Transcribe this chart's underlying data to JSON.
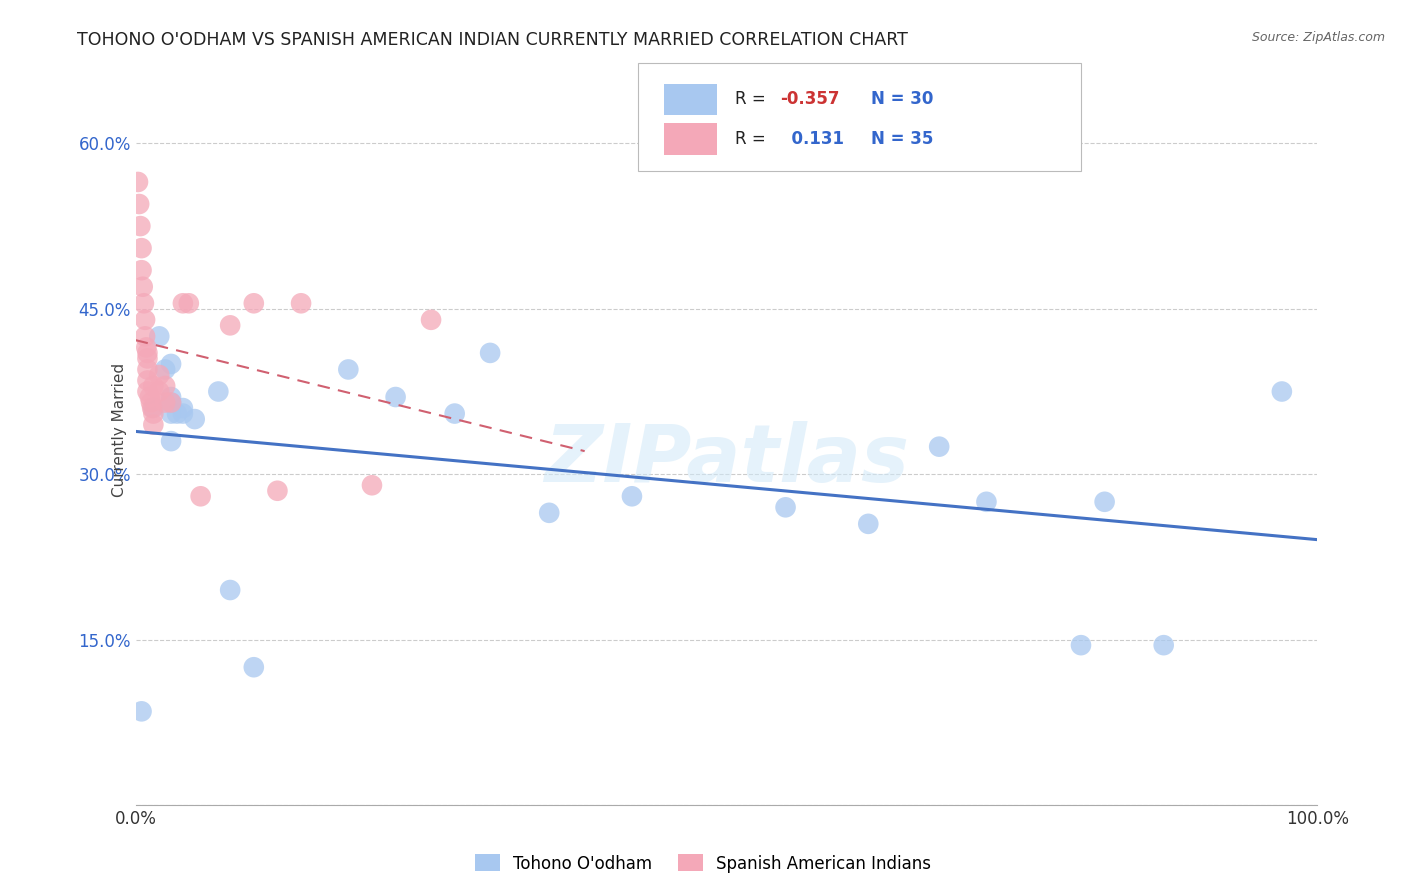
{
  "title": "TOHONO O'ODHAM VS SPANISH AMERICAN INDIAN CURRENTLY MARRIED CORRELATION CHART",
  "source": "Source: ZipAtlas.com",
  "ylabel": "Currently Married",
  "watermark": "ZIPatlas",
  "legend_1_label": "Tohono O'odham",
  "legend_2_label": "Spanish American Indians",
  "R1": -0.357,
  "N1": 30,
  "R2": 0.131,
  "N2": 35,
  "blue_color": "#A8C8F0",
  "pink_color": "#F4A8B8",
  "trendline_blue": "#4472C4",
  "trendline_pink": "#D06070",
  "background": "#FFFFFF",
  "grid_color": "#CCCCCC",
  "yticks": [
    0.0,
    0.15,
    0.3,
    0.45,
    0.6
  ],
  "ytick_labels": [
    "",
    "15.0%",
    "30.0%",
    "45.0%",
    "60.0%"
  ],
  "xlim": [
    0.0,
    1.0
  ],
  "ylim": [
    0.0,
    0.68
  ],
  "blue_x": [
    0.005,
    0.015,
    0.02,
    0.025,
    0.03,
    0.03,
    0.03,
    0.035,
    0.04,
    0.05,
    0.07,
    0.08,
    0.1,
    0.18,
    0.22,
    0.27,
    0.3,
    0.35,
    0.42,
    0.55,
    0.62,
    0.68,
    0.72,
    0.8,
    0.82,
    0.87,
    0.97,
    0.03,
    0.03,
    0.04
  ],
  "blue_y": [
    0.085,
    0.36,
    0.425,
    0.395,
    0.33,
    0.355,
    0.4,
    0.355,
    0.355,
    0.35,
    0.375,
    0.195,
    0.125,
    0.395,
    0.37,
    0.355,
    0.41,
    0.265,
    0.28,
    0.27,
    0.255,
    0.325,
    0.275,
    0.145,
    0.275,
    0.145,
    0.375,
    0.365,
    0.37,
    0.36
  ],
  "pink_x": [
    0.002,
    0.003,
    0.004,
    0.005,
    0.005,
    0.006,
    0.007,
    0.008,
    0.008,
    0.009,
    0.01,
    0.01,
    0.01,
    0.01,
    0.01,
    0.012,
    0.013,
    0.014,
    0.015,
    0.015,
    0.015,
    0.02,
    0.02,
    0.025,
    0.025,
    0.03,
    0.04,
    0.055,
    0.08,
    0.1,
    0.12,
    0.14,
    0.2,
    0.25,
    0.045
  ],
  "pink_y": [
    0.565,
    0.545,
    0.525,
    0.505,
    0.485,
    0.47,
    0.455,
    0.44,
    0.425,
    0.415,
    0.41,
    0.405,
    0.395,
    0.385,
    0.375,
    0.37,
    0.365,
    0.36,
    0.355,
    0.345,
    0.38,
    0.39,
    0.375,
    0.365,
    0.38,
    0.365,
    0.455,
    0.28,
    0.435,
    0.455,
    0.285,
    0.455,
    0.29,
    0.44,
    0.455
  ],
  "pink_trendline_x0": 0.0,
  "pink_trendline_x1": 0.38,
  "blue_trendline_x0": 0.0,
  "blue_trendline_x1": 1.0
}
